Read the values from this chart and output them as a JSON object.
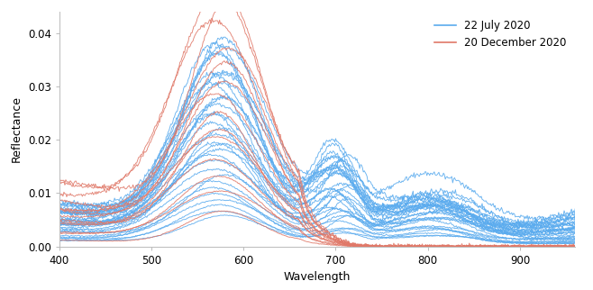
{
  "title": "",
  "xlabel": "Wavelength",
  "ylabel": "Reflectance",
  "xlim": [
    400,
    960
  ],
  "ylim": [
    0,
    0.044
  ],
  "yticks": [
    0,
    0.01,
    0.02,
    0.03,
    0.04
  ],
  "xticks": [
    400,
    500,
    600,
    700,
    800,
    900
  ],
  "blue_color": "#5aabee",
  "red_color": "#e07868",
  "legend_labels": [
    "22 July 2020",
    "20 December 2020"
  ],
  "figsize": [
    6.58,
    3.22
  ],
  "dpi": 100,
  "blue_n_curves": 32,
  "red_n_curves": 14
}
